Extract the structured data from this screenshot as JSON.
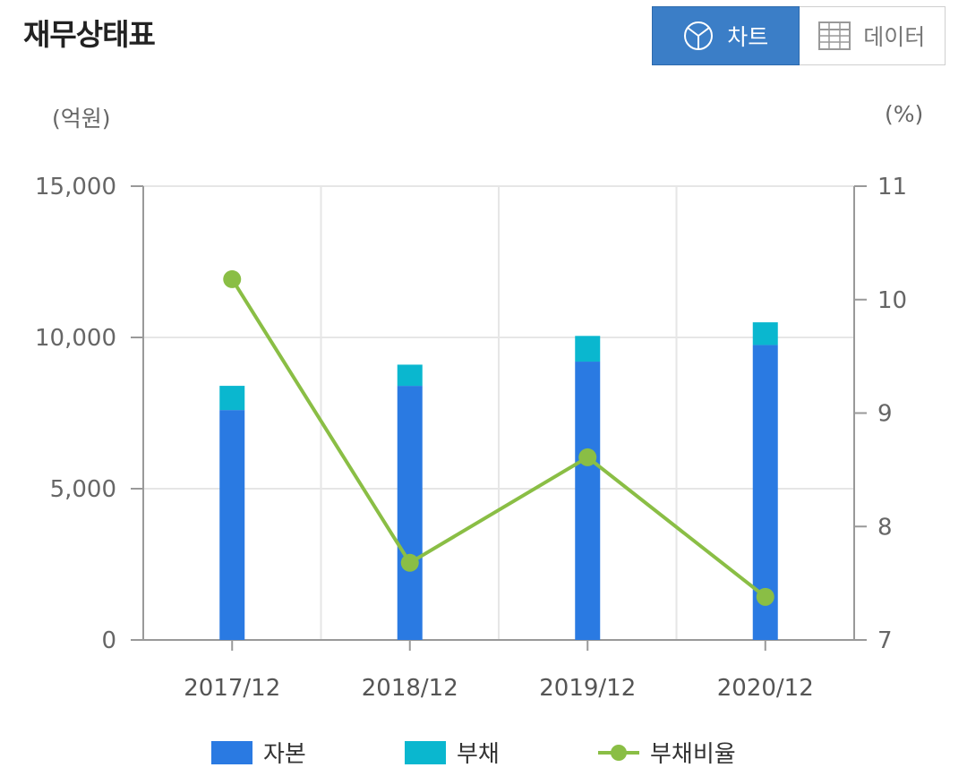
{
  "header": {
    "title": "재무상태표"
  },
  "toggle": {
    "chart_label": "차트",
    "data_label": "데이터"
  },
  "units": {
    "left": "(억원)",
    "right": "(%)"
  },
  "colors": {
    "equity": "#2a7ae2",
    "debt": "#0ab7cf",
    "ratio": "#8abe45",
    "toggle_active": "#3b7ec7"
  },
  "icons": {
    "chart": "pie-chart-icon",
    "data": "table-grid-icon"
  },
  "chart_data": {
    "type": "bar",
    "stacked": true,
    "categories": [
      "2017/12",
      "2018/12",
      "2019/12",
      "2020/12"
    ],
    "series": [
      {
        "name": "자본",
        "axis": "left",
        "values": [
          7600,
          8400,
          9200,
          9750
        ]
      },
      {
        "name": "부채",
        "axis": "left",
        "values": [
          800,
          700,
          850,
          750
        ]
      },
      {
        "name": "부채비율",
        "axis": "right",
        "type": "line",
        "values": [
          10.18,
          7.68,
          8.61,
          7.38
        ]
      }
    ],
    "left_axis": {
      "ylim": [
        0,
        15000
      ],
      "ticks": [
        "0",
        "5,000",
        "10,000",
        "15,000"
      ],
      "tick_values": [
        0,
        5000,
        10000,
        15000
      ]
    },
    "right_axis": {
      "ylim": [
        7,
        11
      ],
      "ticks": [
        "7",
        "8",
        "9",
        "10",
        "11"
      ],
      "tick_values": [
        7,
        8,
        9,
        10,
        11
      ]
    },
    "grid": true,
    "legend_position": "bottom"
  }
}
